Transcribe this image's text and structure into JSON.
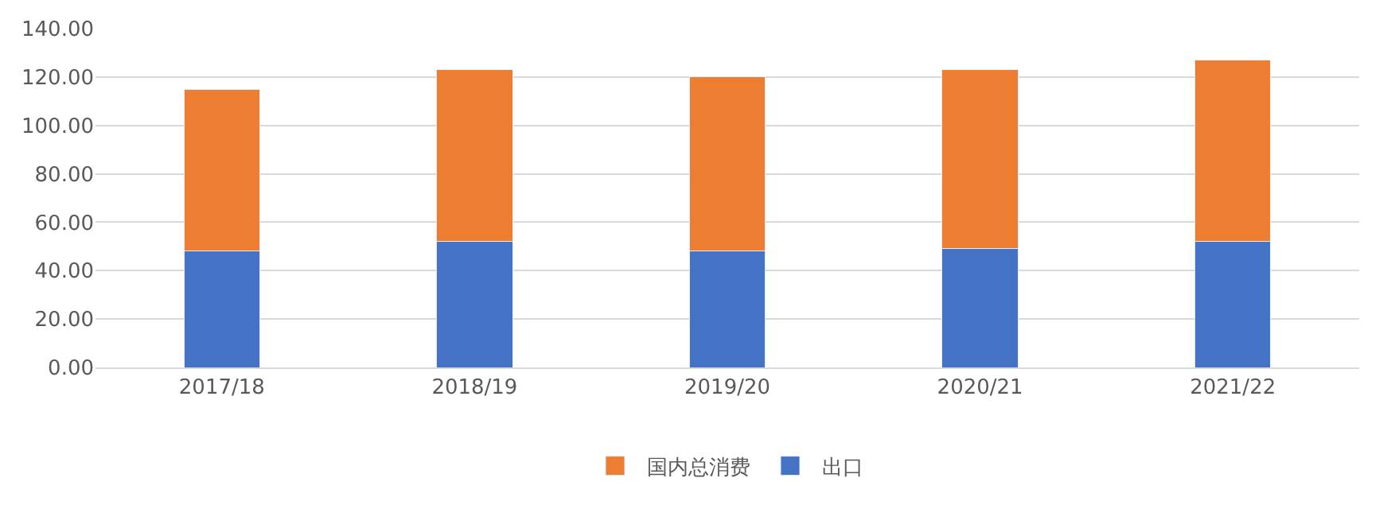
{
  "chart_data": {
    "type": "bar",
    "stacked": true,
    "categories": [
      "2017/18",
      "2018/19",
      "2019/20",
      "2020/21",
      "2021/22"
    ],
    "series": [
      {
        "name": "出口",
        "color": "#4472c4",
        "values": [
          48,
          52,
          48,
          49,
          52
        ]
      },
      {
        "name": "国内总消费",
        "color": "#ed7d31",
        "values": [
          67,
          71,
          72,
          74,
          75
        ]
      }
    ],
    "ylim": [
      0,
      140
    ],
    "yticks": [
      {
        "value": 0,
        "label": "0.00"
      },
      {
        "value": 20,
        "label": "20.00"
      },
      {
        "value": 40,
        "label": "40.00"
      },
      {
        "value": 60,
        "label": "60.00"
      },
      {
        "value": 80,
        "label": "80.00"
      },
      {
        "value": 100,
        "label": "100.00"
      },
      {
        "value": 120,
        "label": "120.00"
      },
      {
        "value": 140,
        "label": "140.00"
      }
    ],
    "grid": "y",
    "legend": "bottom"
  }
}
